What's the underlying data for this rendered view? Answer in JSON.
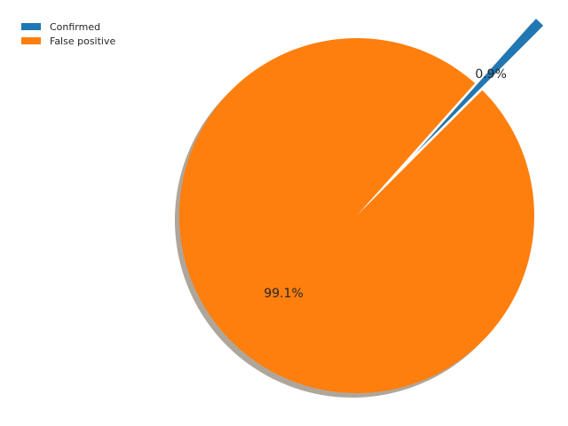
{
  "chart_data": {
    "type": "pie",
    "categories": [
      "Confirmed",
      "False positive"
    ],
    "values": [
      0.9,
      99.1
    ],
    "labels": [
      "0.9%",
      "99.1%"
    ],
    "colors": [
      "#1f77b4",
      "#ff7f0e"
    ],
    "explode": [
      0.5,
      0
    ],
    "shadow": true,
    "start_angle_deg": 45,
    "legend": {
      "placement": "top-left",
      "entries": [
        "Confirmed",
        "False positive"
      ]
    }
  }
}
